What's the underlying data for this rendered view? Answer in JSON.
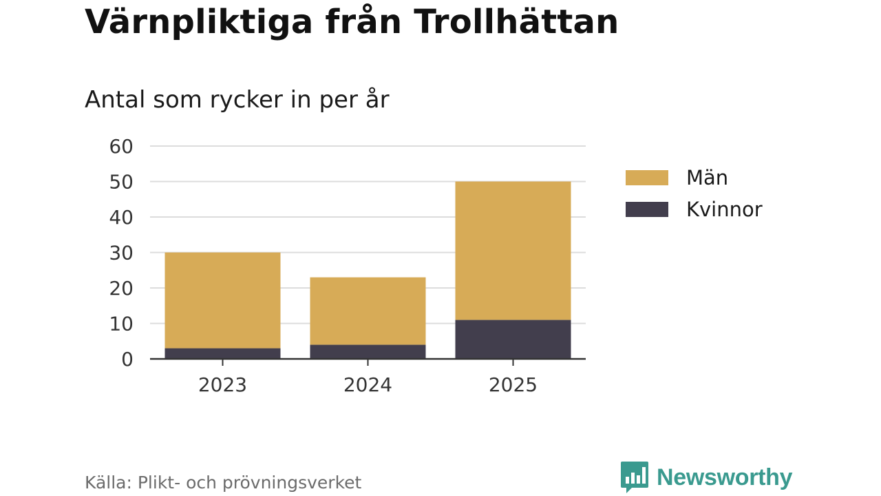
{
  "chart_data": {
    "type": "bar",
    "stacked": true,
    "title": "Värnpliktiga från Trollhättan",
    "subtitle": "Antal som rycker in per år",
    "categories": [
      "2023",
      "2024",
      "2025"
    ],
    "series": [
      {
        "name": "Kvinnor",
        "values": [
          3,
          4,
          11
        ],
        "color": "#423e4d"
      },
      {
        "name": "Män",
        "values": [
          27,
          19,
          39
        ],
        "color": "#d7ab57"
      }
    ],
    "legend_order": [
      "Män",
      "Kvinnor"
    ],
    "ylim": [
      0,
      60
    ],
    "yticks": [
      0,
      10,
      20,
      30,
      40,
      50,
      60
    ],
    "grid": true,
    "legend_position": "right"
  },
  "footer": {
    "source": "Källa: Plikt- och prövningsverket",
    "brand": "Newsworthy",
    "brand_color": "#3a9a8f",
    "brand_icon": "bar-chart-speech-bubble-icon"
  }
}
